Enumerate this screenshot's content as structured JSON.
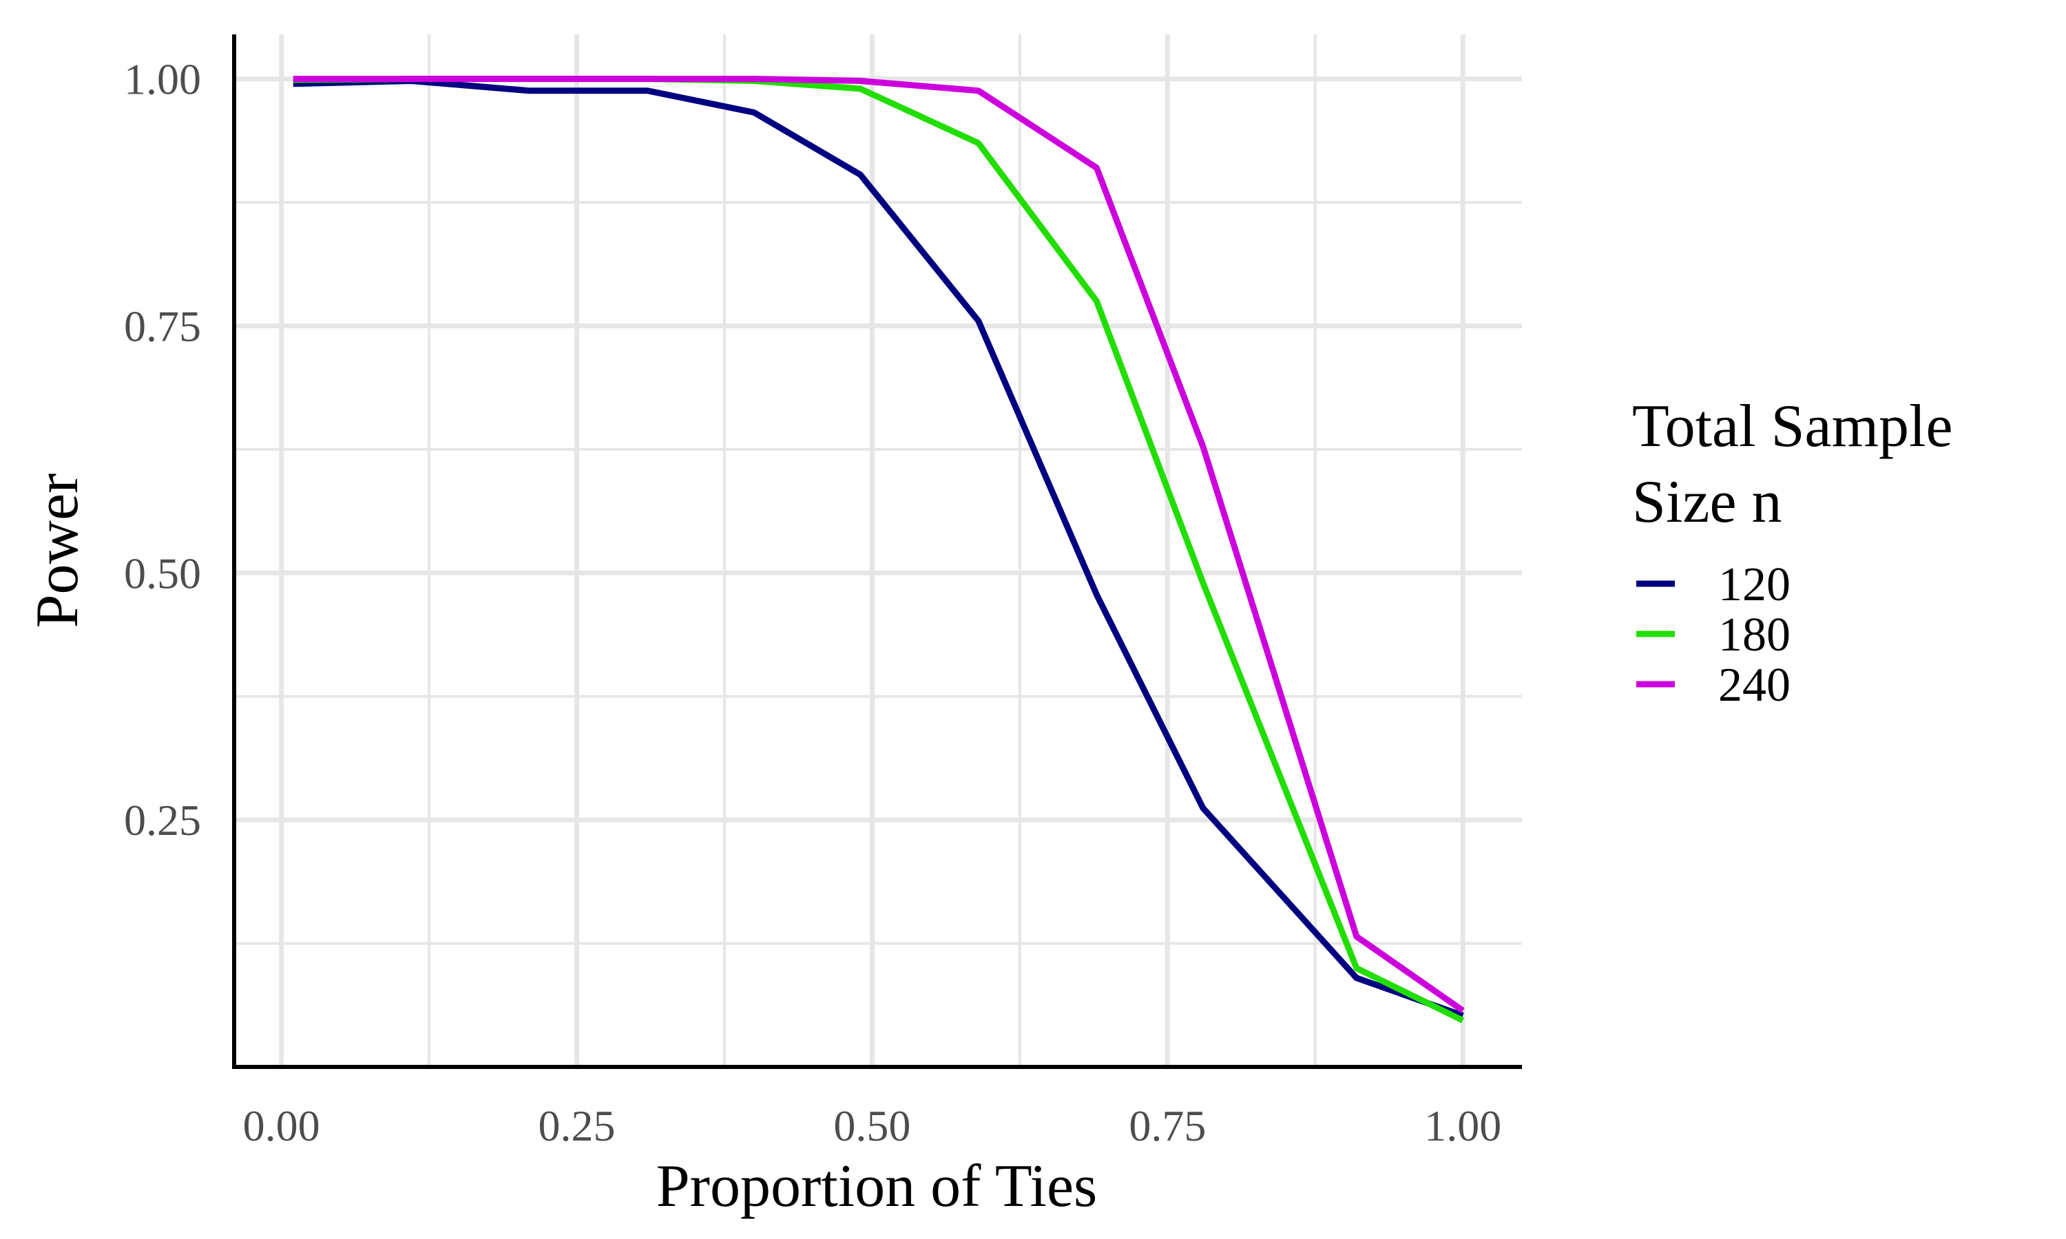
{
  "chart_data": {
    "type": "line",
    "title": "",
    "xlabel": "Proportion of Ties",
    "ylabel": "Power",
    "xlim": [
      -0.04,
      1.05
    ],
    "ylim": [
      0.0,
      1.045
    ],
    "x_ticks": [
      {
        "value": 0.0,
        "label": "0.00"
      },
      {
        "value": 0.25,
        "label": "0.25"
      },
      {
        "value": 0.5,
        "label": "0.50"
      },
      {
        "value": 0.75,
        "label": "0.75"
      },
      {
        "value": 1.0,
        "label": "1.00"
      }
    ],
    "x_minor_ticks": [
      0.125,
      0.375,
      0.625,
      0.875
    ],
    "y_ticks": [
      {
        "value": 0.25,
        "label": "0.25"
      },
      {
        "value": 0.5,
        "label": "0.50"
      },
      {
        "value": 0.75,
        "label": "0.75"
      },
      {
        "value": 1.0,
        "label": "1.00"
      }
    ],
    "y_minor_ticks": [
      0.125,
      0.375,
      0.625,
      0.875
    ],
    "grid": true,
    "legend": {
      "title_lines": [
        "Total Sample",
        "Size n"
      ],
      "position": "right"
    },
    "series": [
      {
        "name": "120",
        "color": "#000080",
        "points": [
          [
            0.01,
            0.995
          ],
          [
            0.11,
            0.998
          ],
          [
            0.21,
            0.988
          ],
          [
            0.31,
            0.988
          ],
          [
            0.4,
            0.966
          ],
          [
            0.49,
            0.903
          ],
          [
            0.59,
            0.755
          ],
          [
            0.69,
            0.478
          ],
          [
            0.78,
            0.262
          ],
          [
            0.91,
            0.09
          ],
          [
            1.0,
            0.052
          ]
        ]
      },
      {
        "name": "180",
        "color": "#22DD00",
        "points": [
          [
            0.01,
            0.999
          ],
          [
            0.11,
            1.0
          ],
          [
            0.21,
            1.0
          ],
          [
            0.31,
            1.0
          ],
          [
            0.4,
            0.998
          ],
          [
            0.49,
            0.99
          ],
          [
            0.59,
            0.935
          ],
          [
            0.69,
            0.775
          ],
          [
            0.78,
            0.49
          ],
          [
            0.91,
            0.1
          ],
          [
            1.0,
            0.047
          ]
        ]
      },
      {
        "name": "240",
        "color": "#CC00DD",
        "points": [
          [
            0.01,
            1.0
          ],
          [
            0.11,
            1.0
          ],
          [
            0.21,
            1.0
          ],
          [
            0.31,
            1.0
          ],
          [
            0.4,
            1.0
          ],
          [
            0.49,
            0.998
          ],
          [
            0.59,
            0.988
          ],
          [
            0.69,
            0.91
          ],
          [
            0.78,
            0.628
          ],
          [
            0.91,
            0.132
          ],
          [
            1.0,
            0.057
          ]
        ]
      }
    ]
  }
}
